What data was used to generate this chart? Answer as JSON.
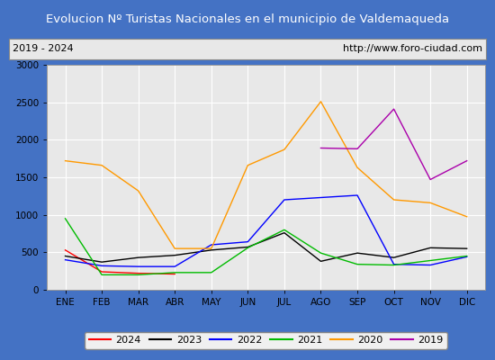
{
  "title": "Evolucion Nº Turistas Nacionales en el municipio de Valdemaqueda",
  "subtitle_left": "2019 - 2024",
  "subtitle_right": "http://www.foro-ciudad.com",
  "months": [
    "ENE",
    "FEB",
    "MAR",
    "ABR",
    "MAY",
    "JUN",
    "JUL",
    "AGO",
    "SEP",
    "OCT",
    "NOV",
    "DIC"
  ],
  "ylim": [
    0,
    3000
  ],
  "yticks": [
    0,
    500,
    1000,
    1500,
    2000,
    2500,
    3000
  ],
  "series": {
    "2024": {
      "color": "#ff0000",
      "values": [
        530,
        240,
        220,
        210,
        null,
        null,
        null,
        null,
        null,
        null,
        null,
        null
      ]
    },
    "2023": {
      "color": "#000000",
      "values": [
        450,
        370,
        430,
        460,
        530,
        570,
        760,
        380,
        490,
        430,
        560,
        550
      ]
    },
    "2022": {
      "color": "#0000ff",
      "values": [
        400,
        320,
        310,
        310,
        600,
        640,
        1200,
        1230,
        1260,
        340,
        330,
        440
      ]
    },
    "2021": {
      "color": "#00bb00",
      "values": [
        950,
        200,
        200,
        230,
        230,
        560,
        800,
        490,
        340,
        330,
        390,
        450
      ]
    },
    "2020": {
      "color": "#ff9900",
      "values": [
        1720,
        1660,
        1320,
        550,
        550,
        1660,
        1870,
        2510,
        1630,
        1200,
        1160,
        975
      ]
    },
    "2019": {
      "color": "#aa00aa",
      "values": [
        null,
        null,
        null,
        null,
        null,
        null,
        null,
        1890,
        1880,
        2410,
        1470,
        1720
      ]
    }
  },
  "title_bg": "#4472c4",
  "title_color": "#ffffff",
  "subtitle_bg": "#e8e8e8",
  "subtitle_color": "#000000",
  "plot_bg": "#e8e8e8",
  "grid_color": "#ffffff",
  "outer_bg": "#4472c4"
}
